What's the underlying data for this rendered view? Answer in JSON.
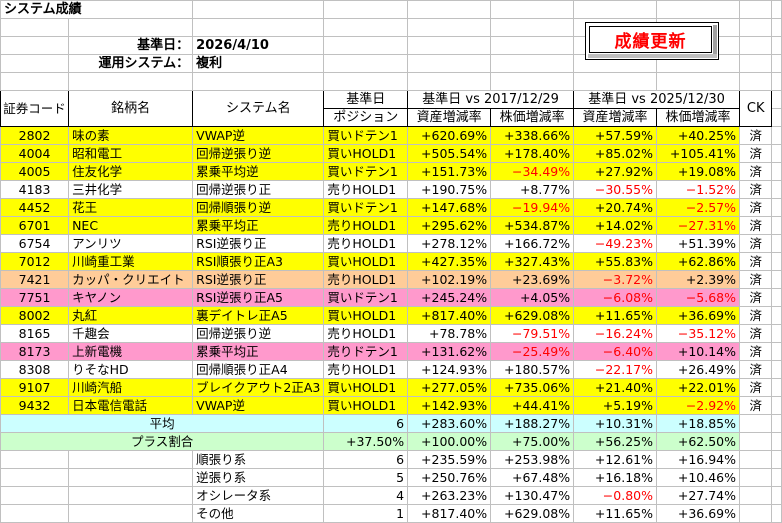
{
  "sheet": {
    "title": "システム成績",
    "base_date_label": "基準日：",
    "base_date_value": "2026/4/10",
    "system_label": "運用システム：",
    "system_value": "複利",
    "update_button": "成績更新"
  },
  "header": {
    "code": "証券コード",
    "name": "銘柄名",
    "system": "システム名",
    "base_day": "基準日",
    "position": "ポジション",
    "group1": "基準日 vs 2017/12/29",
    "group2": "基準日 vs 2025/12/30",
    "asset_rate": "資産増減率",
    "price_rate": "株価増減率",
    "ck": "CK"
  },
  "colors": {
    "yellow": "#ffff00",
    "orange": "#ffcc99",
    "pink": "#ff99cc",
    "cyan": "#ccffff",
    "green": "#ccffcc",
    "negative": "#ff0000",
    "button_text": "#ff0000"
  },
  "rows": [
    {
      "code": "2802",
      "name": "味の素",
      "system": "VWAP逆",
      "position": "買いドテン1",
      "a1": "+620.69%",
      "p1": "+338.66%",
      "a2": "+57.59%",
      "p2": "+40.25%",
      "ck": "済",
      "color": "yellow"
    },
    {
      "code": "4004",
      "name": "昭和電工",
      "system": "回帰逆張り逆",
      "position": "買いHOLD1",
      "a1": "+505.54%",
      "p1": "+178.40%",
      "a2": "+85.02%",
      "p2": "+105.41%",
      "ck": "済",
      "color": "yellow"
    },
    {
      "code": "4005",
      "name": "住友化学",
      "system": "累乗平均逆",
      "position": "買いドテン1",
      "a1": "+151.73%",
      "p1": "-34.49%",
      "a2": "+27.92%",
      "p2": "+19.08%",
      "ck": "済",
      "color": "yellow"
    },
    {
      "code": "4183",
      "name": "三井化学",
      "system": "回帰逆張り正",
      "position": "売りHOLD1",
      "a1": "+190.75%",
      "p1": "+8.77%",
      "a2": "-30.55%",
      "p2": "-1.52%",
      "ck": "済",
      "color": "white"
    },
    {
      "code": "4452",
      "name": "花王",
      "system": "回帰順張り逆",
      "position": "買いドテン1",
      "a1": "+147.68%",
      "p1": "-19.94%",
      "a2": "+20.74%",
      "p2": "-2.57%",
      "ck": "済",
      "color": "yellow"
    },
    {
      "code": "6701",
      "name": "NEC",
      "system": "累乗平均正",
      "position": "売りHOLD1",
      "a1": "+295.62%",
      "p1": "+534.87%",
      "a2": "+14.02%",
      "p2": "-27.31%",
      "ck": "済",
      "color": "yellow"
    },
    {
      "code": "6754",
      "name": "アンリツ",
      "system": "RSI逆張り正",
      "position": "売りHOLD1",
      "a1": "+278.12%",
      "p1": "+166.72%",
      "a2": "-49.23%",
      "p2": "+51.39%",
      "ck": "済",
      "color": "white"
    },
    {
      "code": "7012",
      "name": "川崎重工業",
      "system": "RSI順張り正A3",
      "position": "買いHOLD1",
      "a1": "+427.35%",
      "p1": "+327.43%",
      "a2": "+55.83%",
      "p2": "+62.86%",
      "ck": "済",
      "color": "yellow"
    },
    {
      "code": "7421",
      "name": "カッパ・クリエイト",
      "system": "RSI逆張り正",
      "position": "売りHOLD1",
      "a1": "+102.19%",
      "p1": "+23.69%",
      "a2": "-3.72%",
      "p2": "+2.39%",
      "ck": "済",
      "color": "orange"
    },
    {
      "code": "7751",
      "name": "キヤノン",
      "system": "RSI逆張り正A5",
      "position": "買いドテン1",
      "a1": "+245.24%",
      "p1": "+4.05%",
      "a2": "-6.08%",
      "p2": "-5.68%",
      "ck": "済",
      "color": "pink"
    },
    {
      "code": "8002",
      "name": "丸紅",
      "system": "裏デイトレ正A5",
      "position": "買いHOLD1",
      "a1": "+817.40%",
      "p1": "+629.08%",
      "a2": "+11.65%",
      "p2": "+36.69%",
      "ck": "済",
      "color": "yellow"
    },
    {
      "code": "8165",
      "name": "千趣会",
      "system": "回帰逆張り逆",
      "position": "売りHOLD1",
      "a1": "+78.78%",
      "p1": "-79.51%",
      "a2": "-16.24%",
      "p2": "-35.12%",
      "ck": "済",
      "color": "white"
    },
    {
      "code": "8173",
      "name": "上新電機",
      "system": "累乗平均正",
      "position": "売りドテン1",
      "a1": "+131.62%",
      "p1": "-25.49%",
      "a2": "-6.40%",
      "p2": "+10.14%",
      "ck": "済",
      "color": "pink"
    },
    {
      "code": "8308",
      "name": "りそなHD",
      "system": "回帰順張り正A4",
      "position": "売りHOLD1",
      "a1": "+124.93%",
      "p1": "+180.57%",
      "a2": "-22.17%",
      "p2": "+26.49%",
      "ck": "済",
      "color": "white"
    },
    {
      "code": "9107",
      "name": "川崎汽船",
      "system": "ブレイクアウト2正A3",
      "position": "買いHOLD1",
      "a1": "+277.05%",
      "p1": "+735.06%",
      "a2": "+21.40%",
      "p2": "+22.01%",
      "ck": "済",
      "color": "yellow"
    },
    {
      "code": "9432",
      "name": "日本電信電話",
      "system": "VWAP逆",
      "position": "買いHOLD1",
      "a1": "+142.93%",
      "p1": "+44.41%",
      "a2": "+5.19%",
      "p2": "-2.92%",
      "ck": "済",
      "color": "yellow"
    }
  ],
  "summary": {
    "average": {
      "label": "平均",
      "count": "6",
      "a1": "+283.60%",
      "p1": "+188.27%",
      "a2": "+10.31%",
      "p2": "+18.85%"
    },
    "plus_ratio": {
      "label": "プラス割合",
      "count": "+37.50%",
      "a1": "+100.00%",
      "p1": "+75.00%",
      "a2": "+56.25%",
      "p2": "+62.50%"
    }
  },
  "categories": [
    {
      "label": "順張り系",
      "count": "6",
      "a1": "+235.59%",
      "p1": "+253.98%",
      "a2": "+12.61%",
      "p2": "+16.94%"
    },
    {
      "label": "逆張り系",
      "count": "5",
      "a1": "+250.76%",
      "p1": "+67.48%",
      "a2": "+16.18%",
      "p2": "+10.46%"
    },
    {
      "label": "オシレータ系",
      "count": "4",
      "a1": "+263.23%",
      "p1": "+130.47%",
      "a2": "-0.80%",
      "p2": "+27.74%"
    },
    {
      "label": "その他",
      "count": "1",
      "a1": "+817.40%",
      "p1": "+629.08%",
      "a2": "+11.65%",
      "p2": "+36.69%"
    }
  ]
}
